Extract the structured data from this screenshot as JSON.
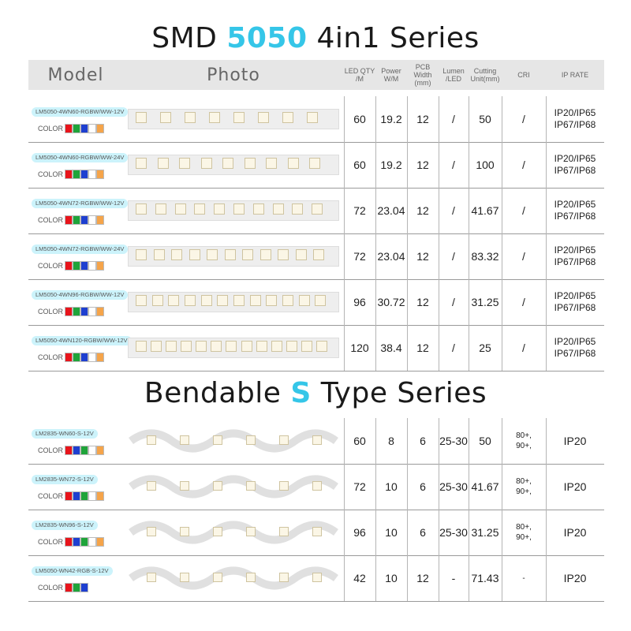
{
  "titles": {
    "smd": {
      "pre": "SMD ",
      "hl": "5050",
      "post": " 4in1 Series"
    },
    "bend": {
      "pre": "Bendable ",
      "hl": "S",
      "post": " Type Series"
    }
  },
  "headers": {
    "model": "Model",
    "photo": "Photo",
    "led_qty": "LED QTY /M",
    "power": "Power W/M",
    "pcb": "PCB Width (mm)",
    "lumen": "Lumen /LED",
    "cutting": "Cutting Unit(mm)",
    "cri": "CRI",
    "ip": "IP RATE"
  },
  "color_label": "COLOR",
  "colors": {
    "red": "#e8141b",
    "green": "#1fa43a",
    "blue": "#1e3fd0",
    "white": "#ffffff",
    "warm": "#f5a44a",
    "cyan": "#35c6e8",
    "highlight": "#ccf3fb"
  },
  "smd_rows": [
    {
      "model": "LM5050-4WN60-RGBW/WW-12V",
      "led": "60",
      "power": "19.2",
      "pcb": "12",
      "lumen": "/",
      "cut": "50",
      "cri": "/",
      "ip1": "IP20/IP65",
      "ip2": "IP67/IP68"
    },
    {
      "model": "LM5050-4WN60-RGBW/WW-24V",
      "led": "60",
      "power": "19.2",
      "pcb": "12",
      "lumen": "/",
      "cut": "100",
      "cri": "/",
      "ip1": "IP20/IP65",
      "ip2": "IP67/IP68"
    },
    {
      "model": "LM5050-4WN72-RGBW/WW-12V",
      "led": "72",
      "power": "23.04",
      "pcb": "12",
      "lumen": "/",
      "cut": "41.67",
      "cri": "/",
      "ip1": "IP20/IP65",
      "ip2": "IP67/IP68"
    },
    {
      "model": "LM5050-4WN72-RGBW/WW-24V",
      "led": "72",
      "power": "23.04",
      "pcb": "12",
      "lumen": "/",
      "cut": "83.32",
      "cri": "/",
      "ip1": "IP20/IP65",
      "ip2": "IP67/IP68"
    },
    {
      "model": "LM5050-4WN96-RGBW/WW-12V",
      "led": "96",
      "power": "30.72",
      "pcb": "12",
      "lumen": "/",
      "cut": "31.25",
      "cri": "/",
      "ip1": "IP20/IP65",
      "ip2": "IP67/IP68"
    },
    {
      "model": "LM5050-4WN120-RGBW/WW-12V",
      "led": "120",
      "power": "38.4",
      "pcb": "12",
      "lumen": "/",
      "cut": "25",
      "cri": "/",
      "ip1": "IP20/IP65",
      "ip2": "IP67/IP68"
    }
  ],
  "bend_rows": [
    {
      "model": "LM2835-WN60-S-12V",
      "led": "60",
      "power": "8",
      "pcb": "6",
      "lumen": "25-30",
      "cut": "50",
      "cri1": "80+,",
      "cri2": "90+,",
      "ip": "IP20",
      "swatch": "five"
    },
    {
      "model": "LM2835-WN72-S-12V",
      "led": "72",
      "power": "10",
      "pcb": "6",
      "lumen": "25-30",
      "cut": "41.67",
      "cri1": "80+,",
      "cri2": "90+,",
      "ip": "IP20",
      "swatch": "five"
    },
    {
      "model": "LM2835-WN96-S-12V",
      "led": "96",
      "power": "10",
      "pcb": "6",
      "lumen": "25-30",
      "cut": "31.25",
      "cri1": "80+,",
      "cri2": "90+,",
      "ip": "IP20",
      "swatch": "five"
    },
    {
      "model": "LM5050-WN42-RGB-S-12V",
      "led": "42",
      "power": "10",
      "pcb": "12",
      "lumen": "-",
      "cut": "71.43",
      "cri1": "-",
      "cri2": "",
      "ip": "IP20",
      "swatch": "three"
    }
  ]
}
